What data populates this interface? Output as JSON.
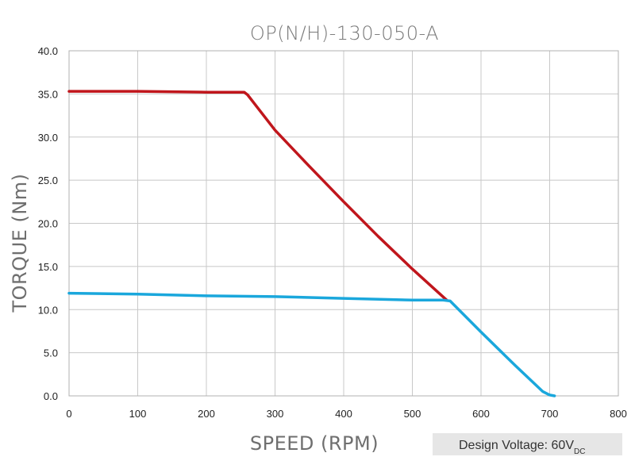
{
  "chart_data": {
    "type": "line",
    "title": "OP(N/H)-130-050-A",
    "xlabel": "SPEED (RPM)",
    "ylabel": "TORQUE (Nm)",
    "xlim": [
      0,
      800
    ],
    "ylim": [
      0,
      40
    ],
    "x_ticks": [
      0,
      100,
      200,
      300,
      400,
      500,
      600,
      700,
      800
    ],
    "x_tick_labels": [
      "0",
      "100",
      "200",
      "300",
      "400",
      "500",
      "600",
      "700",
      "800"
    ],
    "y_ticks": [
      0,
      5,
      10,
      15,
      20,
      25,
      30,
      35,
      40
    ],
    "y_tick_labels": [
      "0.0",
      "5.0",
      "10.0",
      "15.0",
      "20.0",
      "25.0",
      "30.0",
      "35.0",
      "40.0"
    ],
    "grid": true,
    "series": [
      {
        "color": "#c0161c",
        "x": [
          0,
          100,
          200,
          250,
          255,
          260,
          300,
          350,
          400,
          450,
          500,
          550
        ],
        "y": [
          35.3,
          35.3,
          35.2,
          35.2,
          35.2,
          34.9,
          30.8,
          26.6,
          22.5,
          18.5,
          14.7,
          11.1
        ]
      },
      {
        "color": "#1aa7dc",
        "x": [
          0,
          100,
          200,
          300,
          400,
          500,
          545,
          555,
          600,
          650,
          690,
          700,
          707
        ],
        "y": [
          11.9,
          11.8,
          11.6,
          11.5,
          11.3,
          11.1,
          11.1,
          11.0,
          7.4,
          3.5,
          0.5,
          0.1,
          0.0
        ]
      }
    ],
    "annotation": {
      "text": "Design Voltage: 60V",
      "subscript": "DC"
    }
  }
}
